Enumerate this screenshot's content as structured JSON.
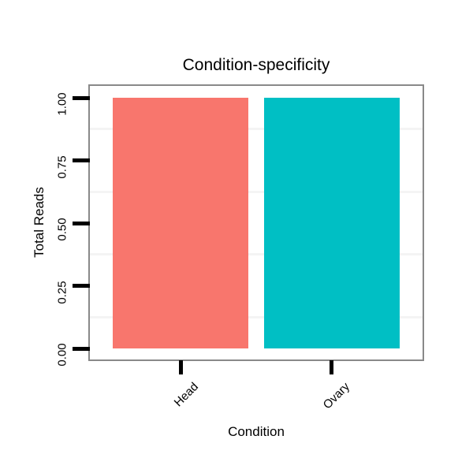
{
  "chart_data": {
    "type": "bar",
    "title": "Condition-specificity",
    "xlabel": "Condition",
    "ylabel": "Total Reads",
    "categories": [
      "Head",
      "Ovary"
    ],
    "values": [
      1.0,
      1.0
    ],
    "bar_colors": [
      "#F8766D",
      "#00BFC4"
    ],
    "ylim": [
      0,
      1
    ],
    "ytick_values": [
      0,
      0.25,
      0.5,
      0.75,
      1.0
    ],
    "ytick_labels": [
      "0.00",
      "0.25",
      "0.50",
      "0.75",
      "1.00"
    ],
    "minor_gridline_values": [
      0.125,
      0.375,
      0.625,
      0.875
    ],
    "y_tick_label_rotation_deg": 90,
    "x_tick_label_rotation_deg": 45,
    "grid": "minor-only",
    "legend": "none",
    "panel_border_color": "#898989",
    "minor_gridline_color": "#F4F4F4",
    "tick_mark_color": "#000000",
    "text_color": "#000000",
    "background_color": "#FFFFFF"
  }
}
